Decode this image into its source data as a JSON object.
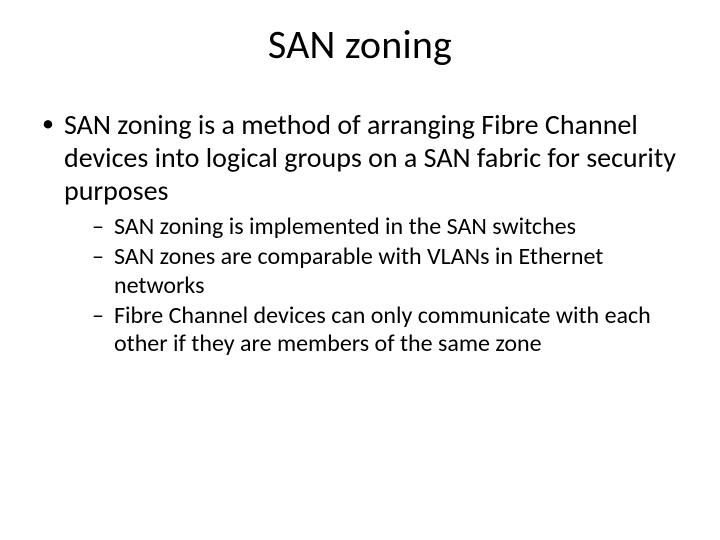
{
  "slide": {
    "title": "SAN zoning",
    "bullets": [
      {
        "text": "SAN zoning is a method of arranging Fibre Channel devices into logical groups on a SAN fabric for security purposes",
        "sub": [
          "SAN zoning is implemented in the SAN switches",
          "SAN zones are comparable with VLANs in Ethernet networks",
          "Fibre Channel devices can only communicate with each other if they are members of the same zone"
        ]
      }
    ],
    "colors": {
      "background": "#ffffff",
      "text": "#000000"
    },
    "fonts": {
      "title_size_pt": 40,
      "body_size_pt": 28,
      "sub_size_pt": 24,
      "family": "Calibri"
    }
  }
}
